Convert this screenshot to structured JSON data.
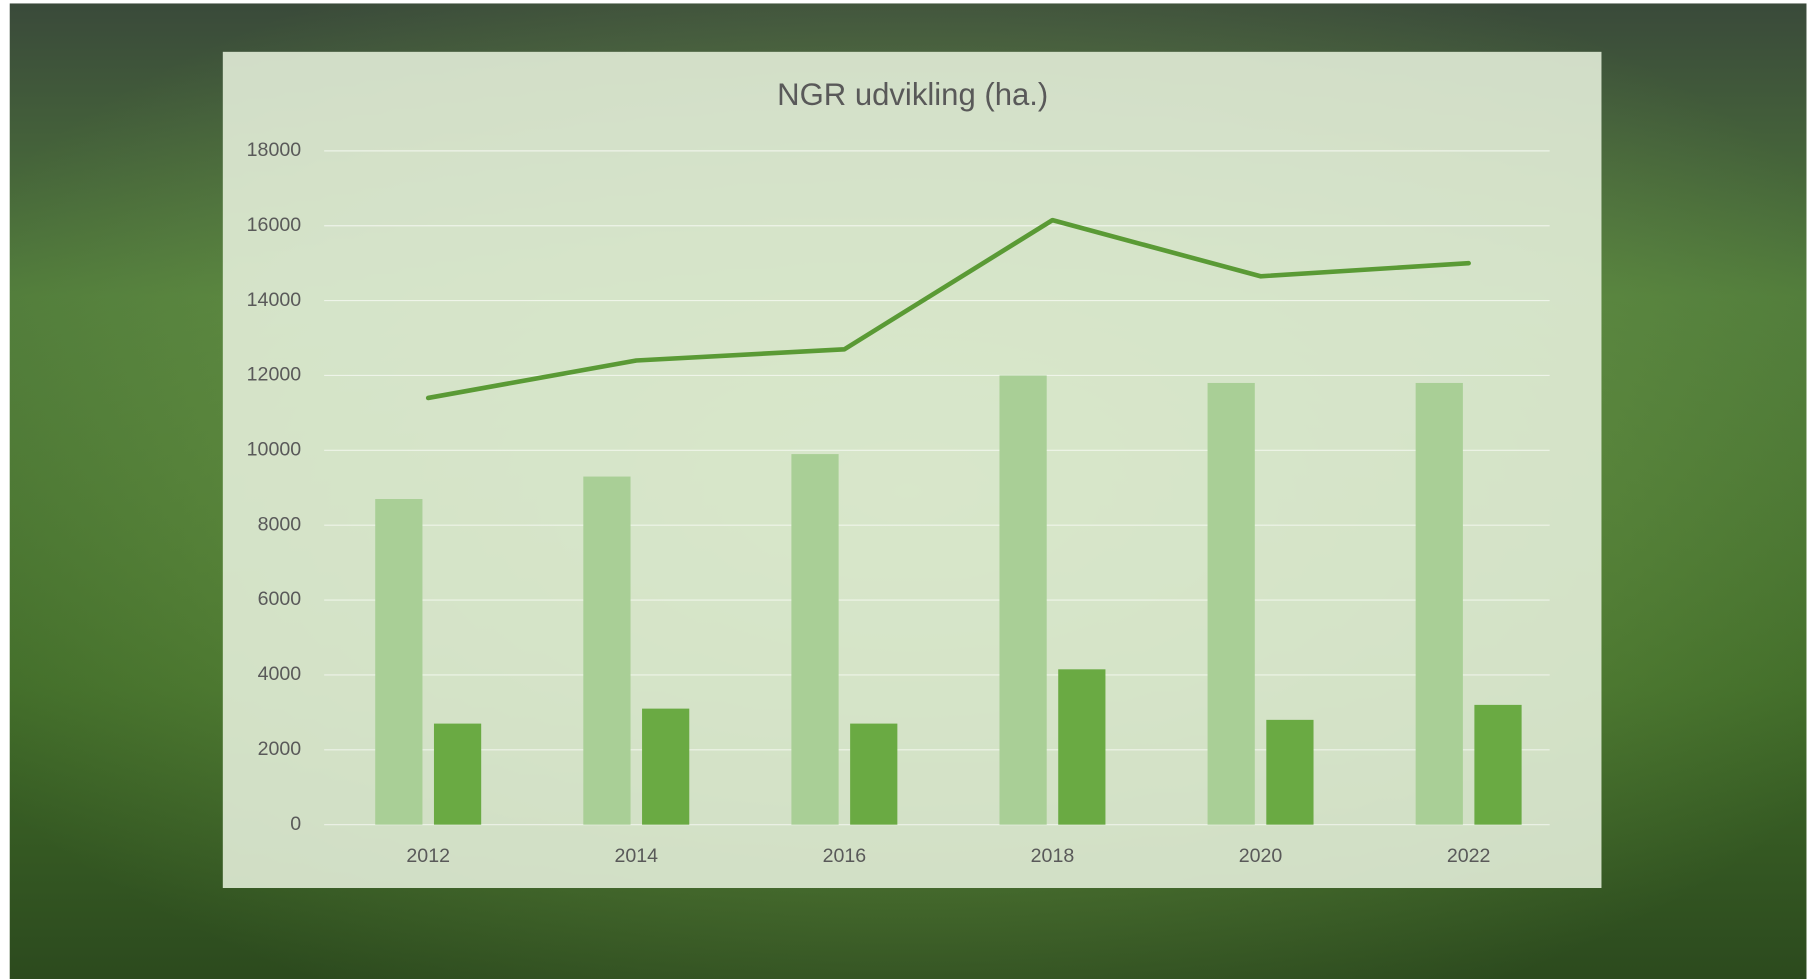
{
  "chart_data": {
    "type": "bar",
    "title": "NGR udvikling (ha.)",
    "categories": [
      "2012",
      "2014",
      "2016",
      "2018",
      "2020",
      "2022"
    ],
    "series": [
      {
        "type": "bar",
        "color": "#a9cf96",
        "values": [
          8700,
          9300,
          9900,
          12000,
          11800,
          11800
        ]
      },
      {
        "type": "bar",
        "color": "#6aaa43",
        "values": [
          2700,
          3100,
          2700,
          4150,
          2800,
          3200
        ]
      },
      {
        "type": "line",
        "color": "#5a9a35",
        "values": [
          11400,
          12400,
          12700,
          16150,
          14650,
          15000
        ]
      }
    ],
    "ylim": [
      0,
      18000
    ],
    "yticks": [
      0,
      2000,
      4000,
      6000,
      8000,
      10000,
      12000,
      14000,
      16000,
      18000
    ],
    "grid": true
  }
}
